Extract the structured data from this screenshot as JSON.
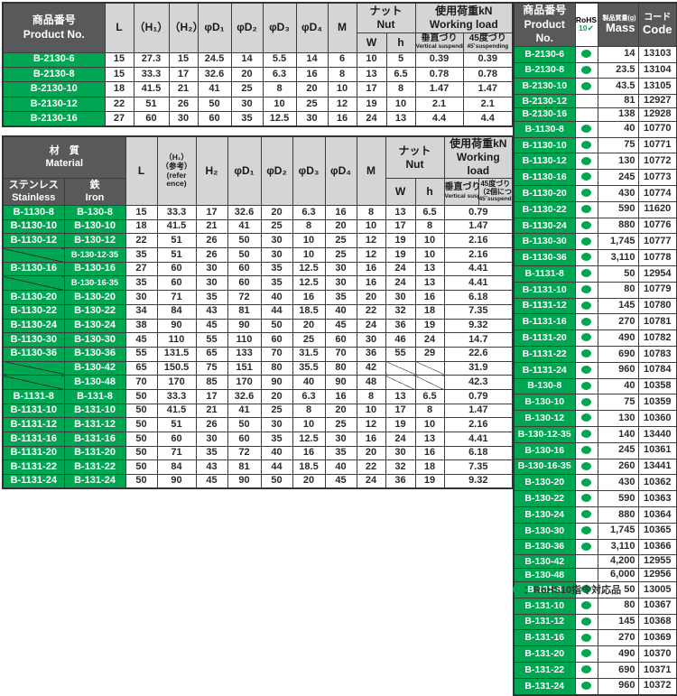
{
  "colors": {
    "green": "#00a651",
    "header_dark": "#58595b",
    "header_light": "#d4d5d7"
  },
  "top_table": {
    "header": {
      "product": "商品番号\nProduct No.",
      "cols": [
        "L",
        "（H₁）",
        "（H₂）",
        "φD₁",
        "φD₂",
        "φD₃",
        "φD₄",
        "M"
      ],
      "nut": "ナット\nNut",
      "nut_sub": [
        "W",
        "h"
      ],
      "load": "使用荷重kN\nWorking load",
      "load_sub_jp": [
        "垂直づり",
        "45度づり"
      ],
      "load_sub_en": [
        "Vertical suspending",
        "45˚suspending"
      ]
    },
    "rows": [
      [
        "B-2130-6",
        "15",
        "27.3",
        "15",
        "24.5",
        "14",
        "5.5",
        "14",
        "6",
        "10",
        "5",
        "0.39",
        "0.39"
      ],
      [
        "B-2130-8",
        "15",
        "33.3",
        "17",
        "32.6",
        "20",
        "6.3",
        "16",
        "8",
        "13",
        "6.5",
        "0.78",
        "0.78"
      ],
      [
        "B-2130-10",
        "18",
        "41.5",
        "21",
        "41",
        "25",
        "8",
        "20",
        "10",
        "17",
        "8",
        "1.47",
        "1.47"
      ],
      [
        "B-2130-12",
        "22",
        "51",
        "26",
        "50",
        "30",
        "10",
        "25",
        "12",
        "19",
        "10",
        "2.1",
        "2.1"
      ],
      [
        "B-2130-16",
        "27",
        "60",
        "30",
        "60",
        "35",
        "12.5",
        "30",
        "16",
        "24",
        "13",
        "4.4",
        "4.4"
      ]
    ]
  },
  "mid_table": {
    "header": {
      "material": "材　質\nMaterial",
      "stainless": "ステンレス\nStainless",
      "iron": "鉄\nIron",
      "cols": [
        "L",
        "（H₁）\n（参考）\n(refer\nence)",
        "H₂",
        "φD₁",
        "φD₂",
        "φD₃",
        "φD₄",
        "M"
      ],
      "nut": "ナット\nNut",
      "nut_sub": [
        "W",
        "h"
      ],
      "load": "使用荷重kN\nWorking load",
      "load_sub_jp": [
        "垂直づり",
        "45度づり"
      ],
      "load_sub_jp2": "（2個につき）",
      "load_sub_en": [
        "Vertical suspending",
        "45˚suspending(2pcs)"
      ]
    },
    "rows": [
      [
        "B-1130-8",
        "B-130-8",
        "15",
        "33.3",
        "17",
        "32.6",
        "20",
        "6.3",
        "16",
        "8",
        "13",
        "6.5",
        "0.79"
      ],
      [
        "B-1130-10",
        "B-130-10",
        "18",
        "41.5",
        "21",
        "41",
        "25",
        "8",
        "20",
        "10",
        "17",
        "8",
        "1.47"
      ],
      [
        "B-1130-12",
        "B-130-12",
        "22",
        "51",
        "26",
        "50",
        "30",
        "10",
        "25",
        "12",
        "19",
        "10",
        "2.16"
      ],
      [
        null,
        "B-130-12-35",
        "35",
        "51",
        "26",
        "50",
        "30",
        "10",
        "25",
        "12",
        "19",
        "10",
        "2.16"
      ],
      [
        "B-1130-16",
        "B-130-16",
        "27",
        "60",
        "30",
        "60",
        "35",
        "12.5",
        "30",
        "16",
        "24",
        "13",
        "4.41"
      ],
      [
        null,
        "B-130-16-35",
        "35",
        "60",
        "30",
        "60",
        "35",
        "12.5",
        "30",
        "16",
        "24",
        "13",
        "4.41"
      ],
      [
        "B-1130-20",
        "B-130-20",
        "30",
        "71",
        "35",
        "72",
        "40",
        "16",
        "35",
        "20",
        "30",
        "16",
        "6.18"
      ],
      [
        "B-1130-22",
        "B-130-22",
        "34",
        "84",
        "43",
        "81",
        "44",
        "18.5",
        "40",
        "22",
        "32",
        "18",
        "7.35"
      ],
      [
        "B-1130-24",
        "B-130-24",
        "38",
        "90",
        "45",
        "90",
        "50",
        "20",
        "45",
        "24",
        "36",
        "19",
        "9.32"
      ],
      [
        "B-1130-30",
        "B-130-30",
        "45",
        "110",
        "55",
        "110",
        "60",
        "25",
        "60",
        "30",
        "46",
        "24",
        "14.7"
      ],
      [
        "B-1130-36",
        "B-130-36",
        "55",
        "131.5",
        "65",
        "133",
        "70",
        "31.5",
        "70",
        "36",
        "55",
        "29",
        "22.6"
      ],
      [
        null,
        "B-130-42",
        "65",
        "150.5",
        "75",
        "151",
        "80",
        "35.5",
        "80",
        "42",
        null,
        null,
        "31.9"
      ],
      [
        null,
        "B-130-48",
        "70",
        "170",
        "85",
        "170",
        "90",
        "40",
        "90",
        "48",
        null,
        null,
        "42.3"
      ],
      [
        "B-1131-8",
        "B-131-8",
        "50",
        "33.3",
        "17",
        "32.6",
        "20",
        "6.3",
        "16",
        "8",
        "13",
        "6.5",
        "0.79"
      ],
      [
        "B-1131-10",
        "B-131-10",
        "50",
        "41.5",
        "21",
        "41",
        "25",
        "8",
        "20",
        "10",
        "17",
        "8",
        "1.47"
      ],
      [
        "B-1131-12",
        "B-131-12",
        "50",
        "51",
        "26",
        "50",
        "30",
        "10",
        "25",
        "12",
        "19",
        "10",
        "2.16"
      ],
      [
        "B-1131-16",
        "B-131-16",
        "50",
        "60",
        "30",
        "60",
        "35",
        "12.5",
        "30",
        "16",
        "24",
        "13",
        "4.41"
      ],
      [
        "B-1131-20",
        "B-131-20",
        "50",
        "71",
        "35",
        "72",
        "40",
        "16",
        "35",
        "20",
        "30",
        "16",
        "6.18"
      ],
      [
        "B-1131-22",
        "B-131-22",
        "50",
        "84",
        "43",
        "81",
        "44",
        "18.5",
        "40",
        "22",
        "32",
        "18",
        "7.35"
      ],
      [
        "B-1131-24",
        "B-131-24",
        "50",
        "90",
        "45",
        "90",
        "50",
        "20",
        "45",
        "24",
        "36",
        "19",
        "9.32"
      ]
    ]
  },
  "right_table": {
    "header": {
      "product": "商品番号\nProduct No.",
      "rohs_line1": "RoHS",
      "rohs_line2": "10",
      "mass_jp": "製品質量(g)",
      "mass_en": "Mass",
      "code_jp": "コード",
      "code_en": "Code"
    },
    "rows": [
      [
        "B-2130-6",
        true,
        "14",
        "13103"
      ],
      [
        "B-2130-8",
        true,
        "23.5",
        "13104"
      ],
      [
        "B-2130-10",
        true,
        "43.5",
        "13105"
      ],
      [
        "B-2130-12",
        false,
        "81",
        "12927"
      ],
      [
        "B-2130-16",
        false,
        "138",
        "12928"
      ],
      [
        "B-1130-8",
        true,
        "40",
        "10770"
      ],
      [
        "B-1130-10",
        true,
        "75",
        "10771"
      ],
      [
        "B-1130-12",
        true,
        "130",
        "10772"
      ],
      [
        "B-1130-16",
        true,
        "245",
        "10773"
      ],
      [
        "B-1130-20",
        true,
        "430",
        "10774"
      ],
      [
        "B-1130-22",
        true,
        "590",
        "11620"
      ],
      [
        "B-1130-24",
        true,
        "880",
        "10776"
      ],
      [
        "B-1130-30",
        true,
        "1,745",
        "10777"
      ],
      [
        "B-1130-36",
        true,
        "3,110",
        "10778"
      ],
      [
        "B-1131-8",
        true,
        "50",
        "12954"
      ],
      [
        "B-1131-10",
        true,
        "80",
        "10779"
      ],
      [
        "B-1131-12",
        true,
        "145",
        "10780"
      ],
      [
        "B-1131-16",
        true,
        "270",
        "10781"
      ],
      [
        "B-1131-20",
        true,
        "490",
        "10782"
      ],
      [
        "B-1131-22",
        true,
        "690",
        "10783"
      ],
      [
        "B-1131-24",
        true,
        "960",
        "10784"
      ],
      [
        "B-130-8",
        true,
        "40",
        "10358"
      ],
      [
        "B-130-10",
        true,
        "75",
        "10359"
      ],
      [
        "B-130-12",
        true,
        "130",
        "10360"
      ],
      [
        "B-130-12-35",
        true,
        "140",
        "13440"
      ],
      [
        "B-130-16",
        true,
        "245",
        "10361"
      ],
      [
        "B-130-16-35",
        true,
        "260",
        "13441"
      ],
      [
        "B-130-20",
        true,
        "430",
        "10362"
      ],
      [
        "B-130-22",
        true,
        "590",
        "10363"
      ],
      [
        "B-130-24",
        true,
        "880",
        "10364"
      ],
      [
        "B-130-30",
        true,
        "1,745",
        "10365"
      ],
      [
        "B-130-36",
        true,
        "3,110",
        "10366"
      ],
      [
        "B-130-42",
        false,
        "4,200",
        "12955"
      ],
      [
        "B-130-48",
        false,
        "6,000",
        "12956"
      ],
      [
        "B-131-8",
        true,
        "50",
        "13005"
      ],
      [
        "B-131-10",
        true,
        "80",
        "10367"
      ],
      [
        "B-131-12",
        true,
        "145",
        "10368"
      ],
      [
        "B-131-16",
        true,
        "270",
        "10369"
      ],
      [
        "B-131-20",
        true,
        "490",
        "10370"
      ],
      [
        "B-131-22",
        true,
        "690",
        "10371"
      ],
      [
        "B-131-24",
        true,
        "960",
        "10372"
      ]
    ]
  },
  "footnote": {
    "text": "：RoHS10指令対応品"
  }
}
